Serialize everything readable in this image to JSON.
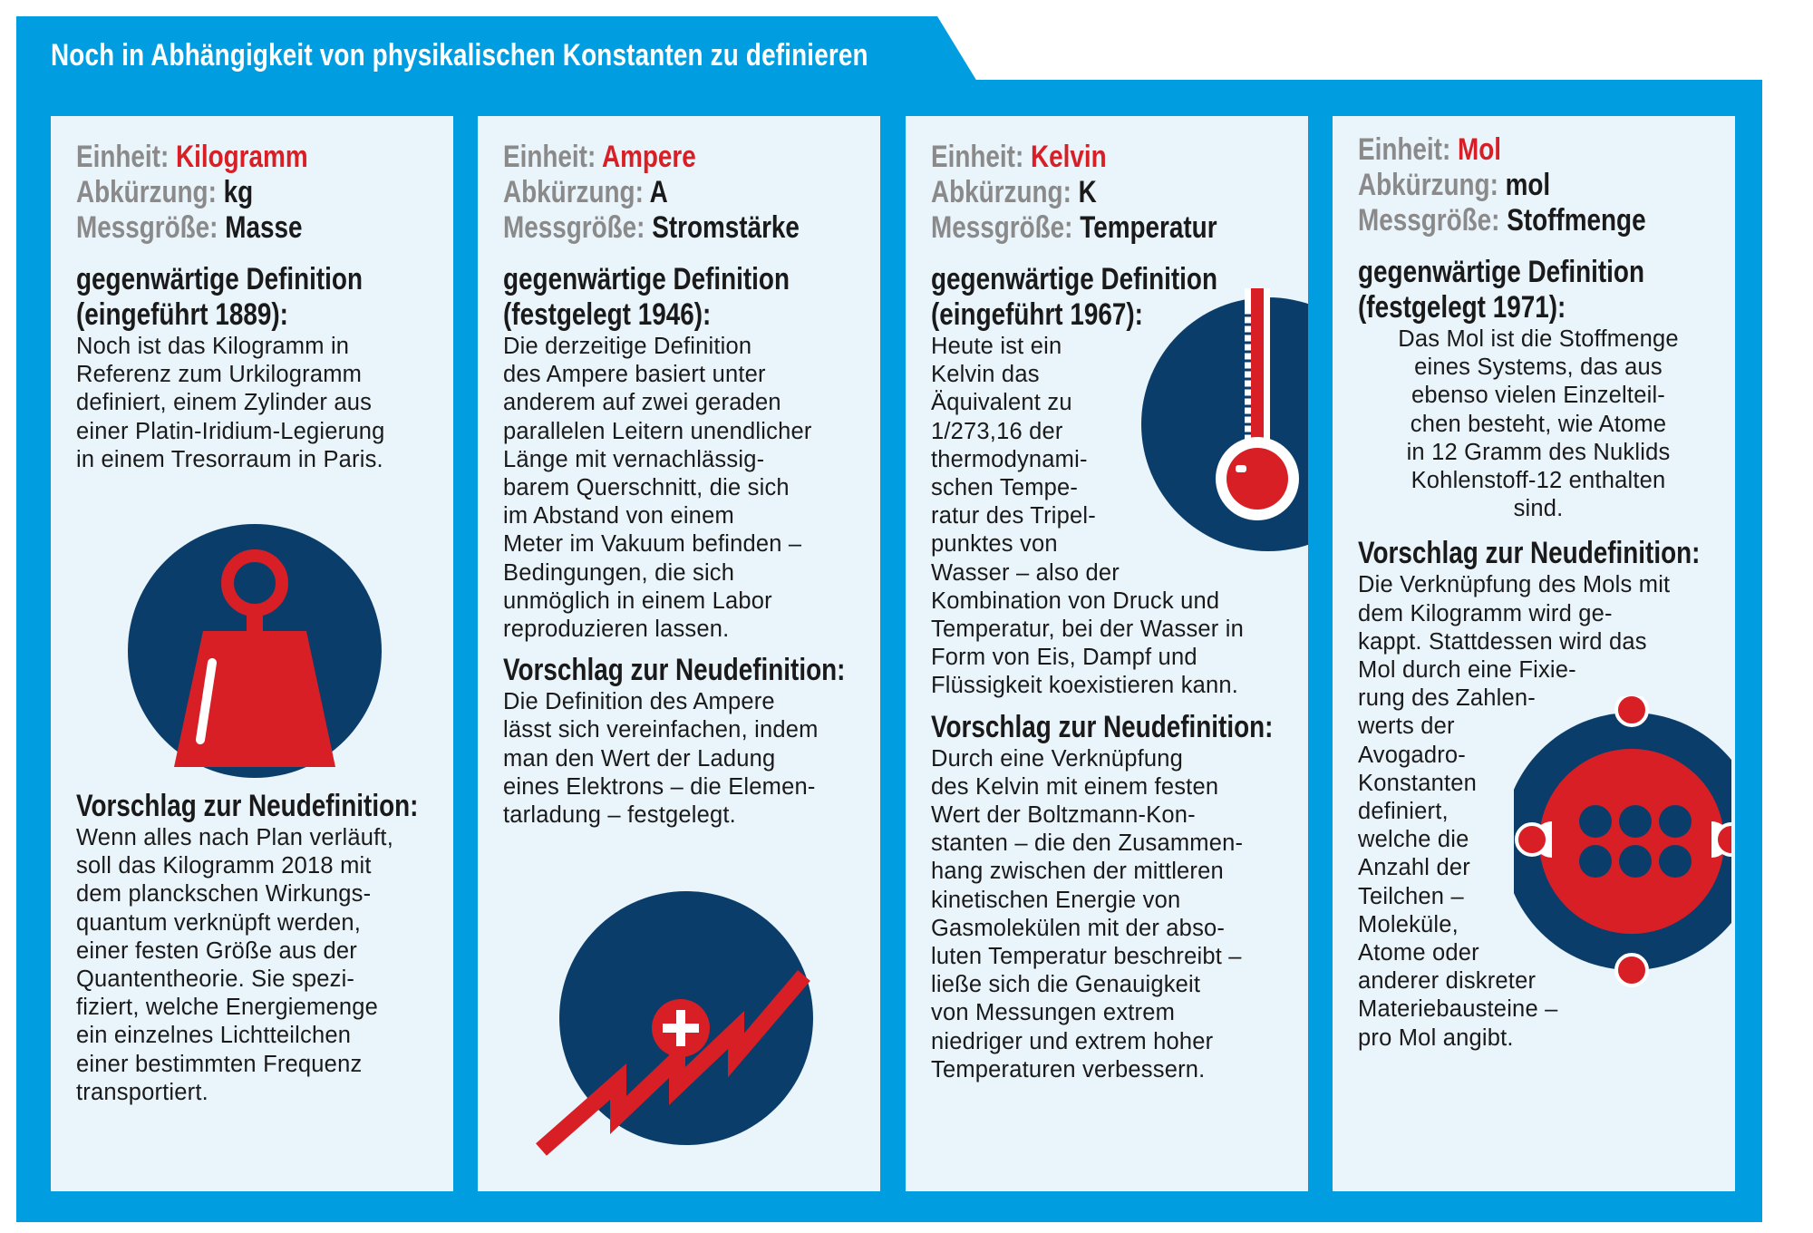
{
  "title": "Noch in Abhängigkeit von physikalischen Konstanten zu definieren",
  "labels": {
    "einheit": "Einheit:",
    "abkuerzung": "Abkürzung:",
    "messgroesse": "Messgröße:",
    "vorschlag": "Vorschlag zur Neudefinition:"
  },
  "colors": {
    "blue": "#009ee0",
    "navy": "#0b3d6b",
    "red": "#d81f26",
    "card_bg": "#eaf4fb"
  },
  "cards": [
    {
      "einheit": "Kilogramm",
      "abkuerzung": "kg",
      "messgroesse": "Masse",
      "def_line1": "gegenwärtige Definition",
      "def_line2": "(eingeführt 1889):",
      "def_text": "Noch ist das Kilogramm in\nReferenz zum Urkilogramm\ndefiniert, einem Zylinder aus\neiner Platin-Iridium-Legierung\nin einem Tresorraum in Paris.",
      "vorschlag_text": "Wenn alles nach Plan verläuft,\nsoll das Kilogramm 2018 mit\ndem planckschen Wirkungs-\nquantum verknüpft werden,\neiner festen Größe aus der\nQuantentheorie. Sie spezi-\nfiziert, welche Energiemenge\nein einzelnes Lichtteilchen\neiner bestimmten Frequenz\ntransportiert.",
      "icon": "weight-icon"
    },
    {
      "einheit": "Ampere",
      "abkuerzung": "A",
      "messgroesse": "Stromstärke",
      "def_line1": "gegenwärtige Definition",
      "def_line2": "(festgelegt 1946):",
      "def_text": "Die derzeitige Definition\ndes Ampere basiert unter\nanderem auf zwei geraden\nparallelen Leitern unendlicher\nLänge mit vernachlässig-\nbarem Querschnitt, die sich\nim Abstand von einem\nMeter im Vakuum befinden –\nBedingungen, die sich\nunmöglich in einem Labor\nreproduzieren lassen.",
      "vorschlag_text": "Die Definition des Ampere\nlässt sich vereinfachen, indem\nman den Wert der Ladung\neines Elektrons – die Elemen-\ntarladung – festgelegt.",
      "icon": "lightning-charge-icon"
    },
    {
      "einheit": "Kelvin",
      "abkuerzung": "K",
      "messgroesse": "Temperatur",
      "def_line1": "gegenwärtige Definition",
      "def_line2": "(eingeführt 1967):",
      "def_text": "Heute ist ein\nKelvin das\nÄquivalent zu\n1/273,16 der\nthermodynami-\nschen Tempe-\nratur des Tripel-\npunktes von\nWasser – also der\nKombination von Druck und\nTemperatur, bei der Wasser in\nForm von Eis, Dampf und\nFlüssigkeit koexistieren kann.",
      "vorschlag_text": "Durch eine Verknüpfung\ndes Kelvin mit einem festen\nWert der Boltzmann-Kon-\nstanten – die den Zusammen-\nhang zwischen der mittleren\nkinetischen Energie von\nGasmolekülen mit der abso-\nluten Temperatur beschreibt –\nließe sich die Genauigkeit\nvon Messungen extrem\nniedriger und extrem hoher\nTemperaturen verbessern.",
      "icon": "thermometer-icon"
    },
    {
      "einheit": "Mol",
      "abkuerzung": "mol",
      "messgroesse": "Stoffmenge",
      "def_line1": "gegenwärtige Definition",
      "def_line2": "(festgelegt 1971):",
      "def_text": "Das Mol ist die Stoffmenge\neines Systems, das aus\nebenso vielen Einzelteil-\nchen besteht, wie Atome\nin 12 Gramm des Nuklids\nKohlenstoff-12 enthalten\nsind.",
      "vorschlag_text": "Die Verknüpfung des Mols mit\ndem Kilogramm wird ge-\nkappt. Stattdessen wird das\nMol durch eine Fixie-\nrung des Zahlen-\nwerts der\nAvogadro-\nKonstanten\ndefiniert,\nwelche die\nAnzahl der\nTeilchen –\nMoleküle,\nAtome oder\nanderer diskreter\nMateriebausteine –\npro Mol angibt.",
      "icon": "atom-icon"
    }
  ]
}
